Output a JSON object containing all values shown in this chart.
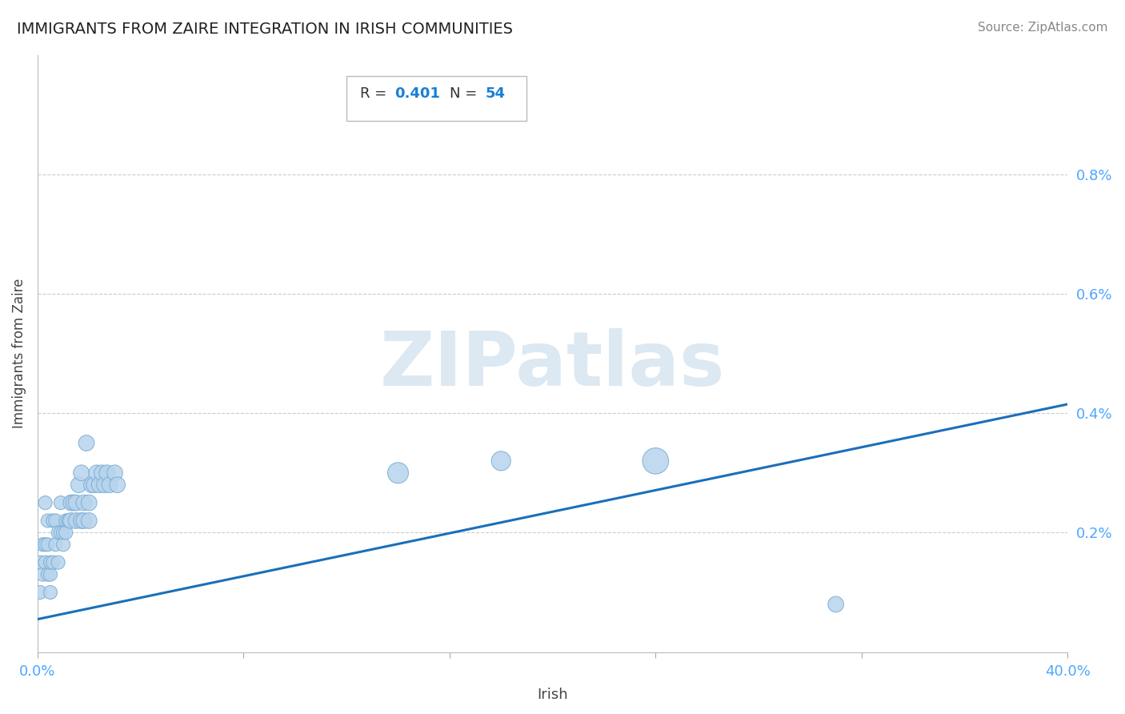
{
  "title": "IMMIGRANTS FROM ZAIRE INTEGRATION IN IRISH COMMUNITIES",
  "source": "Source: ZipAtlas.com",
  "xlabel": "Irish",
  "ylabel": "Immigrants from Zaire",
  "xlim": [
    0.0,
    0.4
  ],
  "ylim": [
    0.0,
    0.01
  ],
  "R": 0.401,
  "N": 54,
  "regression_color": "#1a6fba",
  "scatter_color": "#b8d4ed",
  "scatter_edge_color": "#7aadd4",
  "title_color": "#222222",
  "axis_label_color": "#444444",
  "tick_label_color": "#4da6ff",
  "watermark_color": "#dce8f2",
  "regression_x0": 0.0,
  "regression_y0": 0.00055,
  "regression_x1": 0.4,
  "regression_y1": 0.00415,
  "scatter_x": [
    0.001,
    0.001,
    0.002,
    0.002,
    0.003,
    0.003,
    0.003,
    0.004,
    0.004,
    0.004,
    0.005,
    0.005,
    0.005,
    0.006,
    0.006,
    0.007,
    0.007,
    0.008,
    0.008,
    0.009,
    0.009,
    0.01,
    0.01,
    0.011,
    0.011,
    0.012,
    0.012,
    0.013,
    0.013,
    0.014,
    0.015,
    0.015,
    0.016,
    0.017,
    0.017,
    0.018,
    0.018,
    0.019,
    0.02,
    0.02,
    0.021,
    0.022,
    0.023,
    0.024,
    0.025,
    0.026,
    0.027,
    0.028,
    0.03,
    0.031,
    0.14,
    0.18,
    0.24,
    0.31
  ],
  "scatter_y": [
    0.001,
    0.0015,
    0.0013,
    0.0018,
    0.0015,
    0.0018,
    0.0025,
    0.0013,
    0.0018,
    0.0022,
    0.001,
    0.0013,
    0.0015,
    0.0015,
    0.0022,
    0.0018,
    0.0022,
    0.0015,
    0.002,
    0.002,
    0.0025,
    0.0018,
    0.002,
    0.0022,
    0.002,
    0.0022,
    0.0022,
    0.0022,
    0.0025,
    0.0025,
    0.0025,
    0.0022,
    0.0028,
    0.0022,
    0.003,
    0.0025,
    0.0022,
    0.0035,
    0.0022,
    0.0025,
    0.0028,
    0.0028,
    0.003,
    0.0028,
    0.003,
    0.0028,
    0.003,
    0.0028,
    0.003,
    0.0028,
    0.003,
    0.0032,
    0.0032,
    0.0008
  ],
  "scatter_sizes": [
    150,
    150,
    150,
    150,
    150,
    150,
    150,
    150,
    150,
    150,
    150,
    150,
    150,
    150,
    150,
    150,
    150,
    150,
    150,
    150,
    150,
    150,
    150,
    150,
    150,
    150,
    150,
    200,
    200,
    200,
    200,
    200,
    200,
    200,
    200,
    200,
    200,
    200,
    200,
    200,
    200,
    200,
    200,
    200,
    200,
    200,
    200,
    200,
    200,
    200,
    350,
    300,
    550,
    200
  ],
  "yticks": [
    0.002,
    0.004,
    0.006,
    0.008
  ],
  "ytick_labels": [
    "0.2%",
    "0.4%",
    "0.6%",
    "0.8%"
  ],
  "xticks": [
    0.0,
    0.08,
    0.16,
    0.24,
    0.32,
    0.4
  ],
  "xtick_labels": [
    "0.0%",
    "",
    "",
    "",
    "",
    "40.0%"
  ]
}
